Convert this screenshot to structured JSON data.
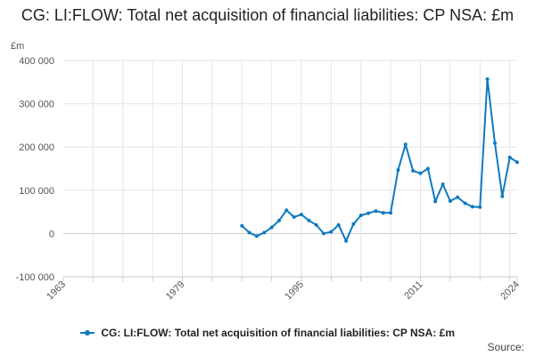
{
  "title": "CG: LI:FLOW: Total net acquisition of financial liabilities: CP NSA: £m",
  "source_label": "Source:",
  "colors": {
    "series": "#0f7abf",
    "grid": "#e6e6e6",
    "zero_line": "#cccccc",
    "axis": "#cccccc",
    "text": "#222222"
  },
  "chart_data": {
    "type": "line",
    "title": "CG: LI:FLOW: Total net acquisition of financial liabilities: CP NSA: £m",
    "ylabel": "£m",
    "xlabel": "",
    "xlim": [
      1963,
      2024
    ],
    "ylim": [
      -100000,
      400000
    ],
    "x_ticks": [
      1963,
      1979,
      1995,
      2011,
      2024
    ],
    "x_tick_labels": [
      "1963",
      "1979",
      "1995",
      "2011",
      "2024"
    ],
    "y_ticks": [
      -100000,
      0,
      100000,
      200000,
      300000,
      400000
    ],
    "y_tick_labels": [
      "-100 000",
      "0",
      "100 000",
      "200 000",
      "300 000",
      "400 000"
    ],
    "grid": true,
    "legend": "bottom",
    "series": [
      {
        "name": "CG: LI:FLOW: Total net acquisition of financial liabilities: CP NSA: £m",
        "x": [
          1987,
          1988,
          1989,
          1990,
          1991,
          1992,
          1993,
          1994,
          1995,
          1996,
          1997,
          1998,
          1999,
          2000,
          2001,
          2002,
          2003,
          2004,
          2005,
          2006,
          2007,
          2008,
          2009,
          2010,
          2011,
          2012,
          2013,
          2014,
          2015,
          2016,
          2017,
          2018,
          2019,
          2020,
          2021,
          2022,
          2023,
          2024
        ],
        "values": [
          18000,
          2000,
          -6000,
          2000,
          14000,
          30000,
          54000,
          38000,
          44000,
          30000,
          20000,
          0,
          4000,
          20000,
          -17000,
          22000,
          42000,
          47000,
          52000,
          48000,
          48000,
          147000,
          206000,
          145000,
          139000,
          150000,
          74000,
          114000,
          75000,
          84000,
          70000,
          62000,
          61000,
          357000,
          209000,
          86000,
          176000,
          165000
        ]
      }
    ]
  }
}
